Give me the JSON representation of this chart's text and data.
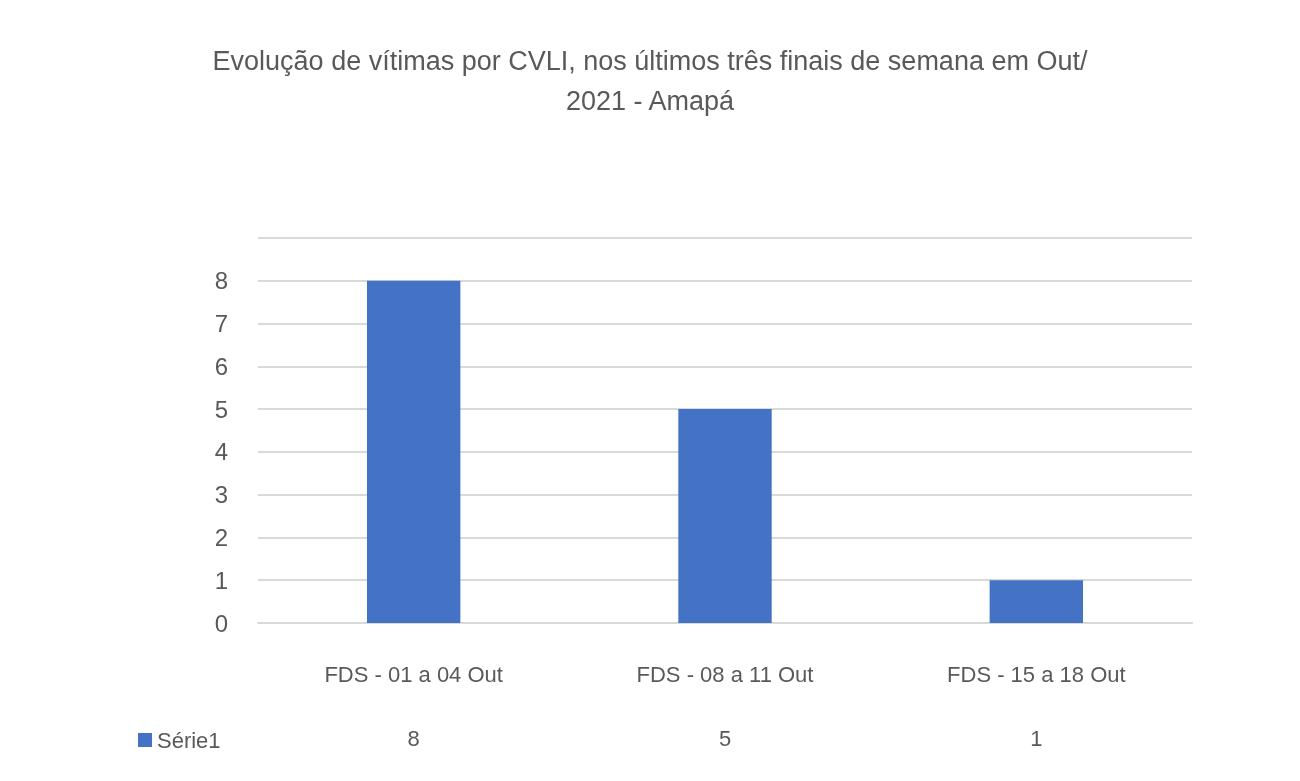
{
  "chart_data": {
    "type": "bar",
    "title": "Evolução de vítimas por CVLI, nos últimos três finais de semana em Out/2021 - Amapá",
    "categories": [
      "FDS - 01 a 04 Out",
      "FDS - 08 a 11 Out",
      "FDS - 15 a 18 Out"
    ],
    "series": [
      {
        "name": "Série1",
        "color": "#4472c4",
        "values": [
          8,
          5,
          1
        ]
      }
    ],
    "ylim": [
      0,
      9
    ],
    "yticks": [
      0,
      1,
      2,
      3,
      4,
      5,
      6,
      7,
      8,
      {
        "value": 9,
        "label": null
      }
    ],
    "grid": "y",
    "legend": "bottom left",
    "data_labels": true
  }
}
